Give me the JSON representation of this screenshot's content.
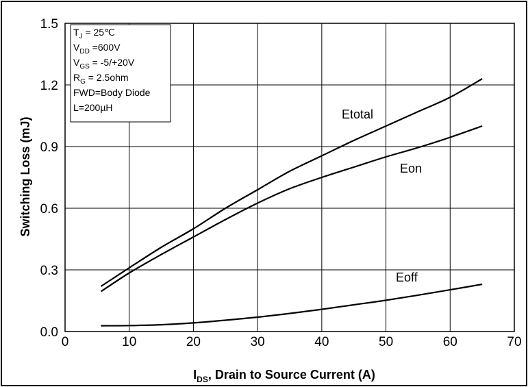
{
  "chart_data": {
    "type": "line",
    "title": "",
    "xlabel": {
      "main": "I",
      "sub": "DS",
      "rest": ", Drain to Source Current (A)"
    },
    "ylabel": "Switching Loss (mJ)",
    "xlim": [
      0,
      70
    ],
    "ylim": [
      0,
      1.5
    ],
    "x_ticks": [
      "0",
      "10",
      "20",
      "30",
      "40",
      "50",
      "60",
      "70"
    ],
    "y_ticks": [
      "0.0",
      "0.3",
      "0.6",
      "0.9",
      "1.2",
      "1.5"
    ],
    "grid": true,
    "series": [
      {
        "name": "Etotal",
        "x": [
          5.6,
          10,
          15,
          20,
          25,
          30,
          35,
          40,
          45,
          50,
          55,
          60,
          65
        ],
        "y": [
          0.22,
          0.31,
          0.41,
          0.5,
          0.6,
          0.69,
          0.78,
          0.855,
          0.93,
          1.0,
          1.07,
          1.14,
          1.23
        ]
      },
      {
        "name": "Eon",
        "x": [
          5.6,
          10,
          15,
          20,
          25,
          30,
          35,
          40,
          45,
          50,
          55,
          60,
          65
        ],
        "y": [
          0.195,
          0.285,
          0.375,
          0.46,
          0.545,
          0.625,
          0.695,
          0.75,
          0.8,
          0.85,
          0.895,
          0.945,
          1.0
        ]
      },
      {
        "name": "Eoff",
        "x": [
          5.6,
          10,
          15,
          20,
          25,
          30,
          35,
          40,
          45,
          50,
          55,
          60,
          65
        ],
        "y": [
          0.028,
          0.029,
          0.033,
          0.042,
          0.055,
          0.07,
          0.088,
          0.108,
          0.13,
          0.152,
          0.177,
          0.203,
          0.23
        ]
      }
    ],
    "conditions": [
      {
        "main": "T",
        "sub": "J",
        "rest": " = 25℃"
      },
      {
        "main": "V",
        "sub": "DD",
        "rest": " =600V"
      },
      {
        "main": "V",
        "sub": "GS",
        "rest": " = -5/+20V"
      },
      {
        "main": "R",
        "sub": "G",
        "rest": " = 2.5ohm"
      },
      {
        "main": "FWD=Body Diode",
        "sub": "",
        "rest": ""
      },
      {
        "main": "L=200µH",
        "sub": "",
        "rest": ""
      }
    ],
    "colors": {
      "line": "#000000",
      "grid": "#000000",
      "background": "#ffffff"
    }
  }
}
